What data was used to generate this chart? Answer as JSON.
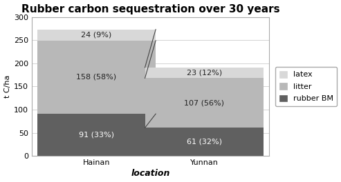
{
  "title": "Rubber carbon sequestration over 30 years",
  "xlabel": "location",
  "ylabel": "t C/ha",
  "categories": [
    "Hainan",
    "Yunnan"
  ],
  "rubber_bm": [
    91,
    61
  ],
  "litter": [
    158,
    107
  ],
  "latex": [
    24,
    23
  ],
  "rubber_bm_labels": [
    "91 (33%)",
    "61 (32%)"
  ],
  "litter_labels": [
    "158 (58%)",
    "107 (56%)"
  ],
  "latex_labels": [
    "24 (9%)",
    "23 (12%)"
  ],
  "color_rubber_bm": "#606060",
  "color_litter": "#b8b8b8",
  "color_latex": "#d8d8d8",
  "ylim": [
    0,
    300
  ],
  "yticks": [
    0,
    50,
    100,
    150,
    200,
    250,
    300
  ],
  "legend_labels": [
    "latex",
    "litter",
    "rubber BM"
  ],
  "background_color": "#ffffff",
  "plot_bg_color": "#ffffff",
  "line_color": "#444444",
  "border_color": "#aaaaaa",
  "title_fontsize": 11,
  "label_fontsize": 8,
  "tick_fontsize": 8,
  "bar_width": 0.55,
  "x_positions": [
    0.25,
    0.75
  ]
}
